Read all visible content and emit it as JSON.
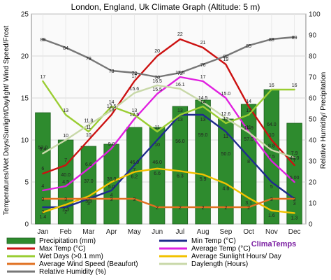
{
  "chart_data": {
    "type": "bar",
    "title": "London, England, Uk Climate Graph (Altitude: 5 m)",
    "ylabel_left": "Temperatures/Wet Days/Sunlight/Daylight/ Wind Speed/Frost",
    "ylabel_right": "Relative Humidity/ Precipitation",
    "categories": [
      "Jan",
      "Feb",
      "Mar",
      "Apr",
      "May",
      "Jun",
      "Jul",
      "Aug",
      "Sep",
      "Oct",
      "Nov",
      "Dec"
    ],
    "y_left": {
      "min": 0,
      "max": 25,
      "ticks": [
        0,
        5,
        10,
        15,
        20,
        25
      ]
    },
    "y_right": {
      "min": 0,
      "max": 100,
      "ticks": [
        0,
        10,
        20,
        30,
        40,
        50,
        60,
        70,
        80,
        90,
        100
      ]
    },
    "grid": true,
    "brand": "ClimaTemps",
    "series": [
      {
        "name": "Precipitation (mm)",
        "type": "bar",
        "axis": "right",
        "color": "#2e8b2e",
        "values": [
          53.0,
          40.0,
          37.0,
          38.0,
          46.0,
          46.0,
          56.0,
          59.0,
          50.0,
          57.0,
          64.0,
          48.0
        ],
        "labels": [
          "53.0",
          "40.0",
          "37.0",
          "38.0",
          "46.0",
          "46.0",
          "56.0",
          "59.0",
          "50.0",
          "57.0",
          "64.0",
          "48.0"
        ]
      },
      {
        "name": "Min Temp (°C)",
        "type": "line",
        "axis": "left",
        "color": "#1f2b8c",
        "values": [
          2,
          2,
          3,
          4,
          7,
          10,
          13,
          13,
          11,
          8,
          5,
          3
        ],
        "labels": [
          "2",
          "2",
          "3",
          "4",
          "7",
          "10",
          "13",
          "13",
          "11",
          "8",
          "5",
          "3"
        ]
      },
      {
        "name": "Max Temp (°C)",
        "type": "line",
        "axis": "left",
        "color": "#cc1111",
        "values": [
          6,
          7,
          10,
          13,
          17,
          20,
          22,
          21,
          19,
          14,
          10,
          7
        ],
        "labels": [
          "6",
          "7",
          "10",
          "13",
          "17",
          "20",
          "22",
          "21",
          "19",
          "14",
          "10",
          "7"
        ]
      },
      {
        "name": "Average Temp (°C)",
        "type": "line",
        "axis": "left",
        "color": "#e020e0",
        "values": [
          4,
          4.5,
          6.6,
          9.0,
          12.5,
          15.5,
          17.5,
          17.0,
          15.0,
          11.0,
          7.5,
          5.0
        ],
        "labels": [
          "4",
          "4.5",
          "6.6",
          "9.0",
          "12.5",
          "15.5",
          "17.5",
          "17",
          "15.0",
          "11",
          "7.5",
          "5.00"
        ]
      },
      {
        "name": "Wet Days (>0.1 mm)",
        "type": "line",
        "axis": "left",
        "color": "#9acd32",
        "values": [
          17,
          13,
          11,
          14,
          13,
          11,
          13,
          14,
          12,
          13,
          16,
          16
        ],
        "labels": [
          "17",
          "13",
          "11",
          "14",
          "13",
          "11",
          "13",
          "14",
          "12",
          "13",
          "16",
          "16"
        ]
      },
      {
        "name": "Average Sunlight Hours/ Day",
        "type": "line",
        "axis": "left",
        "color": "#f2c200",
        "values": [
          1.4,
          2.3,
          3.3,
          5.0,
          6.2,
          6.6,
          6.3,
          5.9,
          4.8,
          3.1,
          1.6,
          1.3
        ],
        "labels": [
          "1.4",
          "2.3",
          "3.3",
          "5.0",
          "6.2",
          "6.6",
          "6.3",
          "5.9",
          "4.8",
          "3.1",
          "1.6",
          "1.3"
        ]
      },
      {
        "name": "Average Wind Speed (Beaufort)",
        "type": "line",
        "axis": "left",
        "color": "#e07020",
        "values": [
          3,
          3,
          3,
          3,
          3,
          2,
          2,
          2,
          2,
          2,
          3,
          3
        ],
        "labels": [
          "3",
          "3",
          "3",
          "3",
          "3",
          "2",
          "2",
          "2",
          "2",
          "2",
          "3",
          "3"
        ]
      },
      {
        "name": "Daylength (Hours)",
        "type": "line",
        "axis": "left",
        "color": "#c8d8a8",
        "values": [
          8.4,
          10,
          11.8,
          13.5,
          15.6,
          16.5,
          16.1,
          14.5,
          12.6,
          10.9,
          8.8,
          7.9
        ],
        "labels": [
          "8.4",
          "10",
          "11.8",
          "13.5",
          "15.6",
          "16.5",
          "16.1",
          "14.5",
          "12.6",
          "10.9",
          "8.8",
          "7.9"
        ]
      },
      {
        "name": "Relative Humidity (%)",
        "type": "line",
        "axis": "right",
        "color": "#777777",
        "values": [
          88,
          84,
          79,
          73,
          72,
          70,
          72,
          76,
          80,
          85,
          88,
          89
        ],
        "labels": [
          "88",
          "84",
          "79",
          "73",
          "72",
          "70",
          "72",
          "76",
          "80",
          "85",
          "88",
          "89"
        ]
      }
    ]
  },
  "legend_order": [
    [
      "Precipitation (mm)",
      "Min Temp (°C)"
    ],
    [
      "Max Temp (°C)",
      "Average Temp (°C)"
    ],
    [
      "Wet Days (>0.1 mm)",
      "Average Sunlight Hours/ Day"
    ],
    [
      "Average Wind Speed (Beaufort)",
      "Daylength (Hours)"
    ],
    [
      "Relative Humidity (%)",
      ""
    ]
  ]
}
